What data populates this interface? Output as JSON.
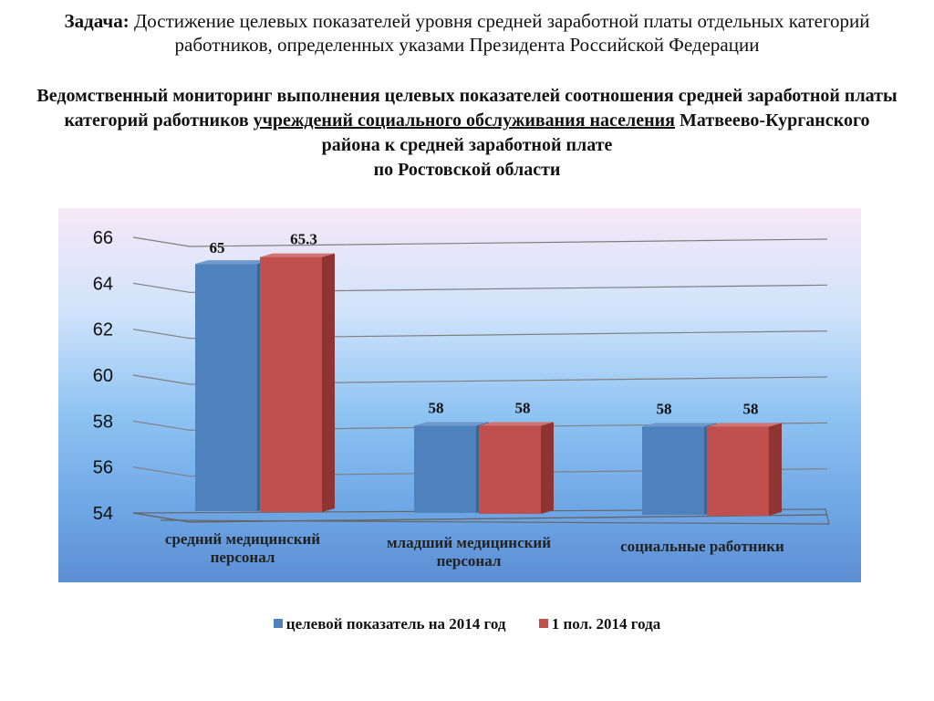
{
  "header": {
    "task_label": "Задача:",
    "task_text": "Достижение целевых показателей уровня средней заработной платы отдельных категорий работников, определенных указами Президента Российской Федерации",
    "subtitle_part1": "Ведомственный мониторинг выполнения целевых показателей соотношения средней заработной платы категорий работников",
    "subtitle_underlined": "учреждений социального обслуживания населения",
    "subtitle_part2": "Матвеево-Курганского района к средней заработной плате",
    "subtitle_part3": "по Ростовской области"
  },
  "chart_data": {
    "type": "bar",
    "categories": [
      "средний медицинский персонал",
      "младший медицинский персонал",
      "социальные работники"
    ],
    "series": [
      {
        "name": "целевой показатель на 2014 год",
        "values": [
          65,
          58,
          58
        ],
        "labels": [
          "65",
          "58",
          "58"
        ],
        "color": "#4f81bd"
      },
      {
        "name": "1 пол. 2014 года",
        "values": [
          65.3,
          58,
          58
        ],
        "labels": [
          "65.3",
          "58",
          "58"
        ],
        "color": "#c0504d"
      }
    ],
    "ylim": [
      54,
      66
    ],
    "yticks": [
      "54",
      "56",
      "58",
      "60",
      "62",
      "64",
      "66"
    ],
    "grid": true,
    "legend_position": "bottom",
    "style": "3d-clustered-column"
  }
}
